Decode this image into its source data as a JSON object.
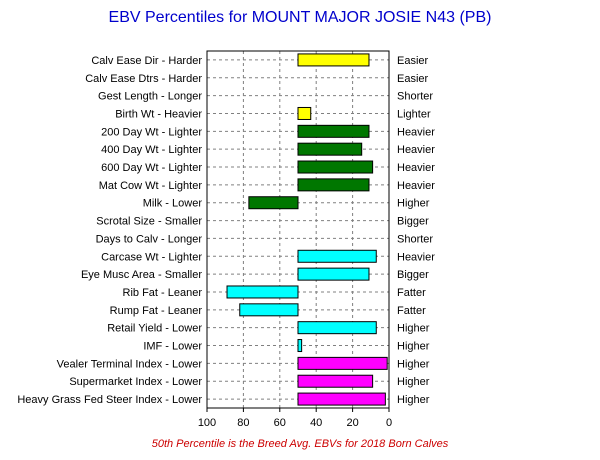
{
  "chart_data": {
    "type": "bar",
    "title": "EBV Percentiles for MOUNT MAJOR JOSIE N43 (PB)",
    "footnote": "50th Percentile is the Breed Avg. EBVs for 2018 Born Calves",
    "xlim": [
      100,
      0
    ],
    "xticks": [
      100,
      80,
      60,
      40,
      20,
      0
    ],
    "baseline": 50,
    "grid": true,
    "colors": {
      "yellow": "#ffff00",
      "green": "#007700",
      "cyan": "#00ffff",
      "magenta": "#ff00ff",
      "title": "#0000cc",
      "footnote": "#cc0000"
    },
    "rows": [
      {
        "left": "Calv Ease Dir - Harder",
        "right": "Easier",
        "value": 11,
        "color": "yellow"
      },
      {
        "left": "Calv Ease Dtrs - Harder",
        "right": "Easier",
        "value": null,
        "color": "yellow"
      },
      {
        "left": "Gest Length - Longer",
        "right": "Shorter",
        "value": null,
        "color": "yellow"
      },
      {
        "left": "Birth Wt - Heavier",
        "right": "Lighter",
        "value": 43,
        "color": "yellow"
      },
      {
        "left": "200 Day Wt - Lighter",
        "right": "Heavier",
        "value": 11,
        "color": "green"
      },
      {
        "left": "400 Day Wt - Lighter",
        "right": "Heavier",
        "value": 15,
        "color": "green"
      },
      {
        "left": "600 Day Wt - Lighter",
        "right": "Heavier",
        "value": 9,
        "color": "green"
      },
      {
        "left": "Mat Cow Wt - Lighter",
        "right": "Heavier",
        "value": 11,
        "color": "green"
      },
      {
        "left": "Milk - Lower",
        "right": "Higher",
        "value": 77,
        "color": "green"
      },
      {
        "left": "Scrotal Size - Smaller",
        "right": "Bigger",
        "value": null,
        "color": "green"
      },
      {
        "left": "Days to Calv - Longer",
        "right": "Shorter",
        "value": null,
        "color": "green"
      },
      {
        "left": "Carcase Wt - Lighter",
        "right": "Heavier",
        "value": 7,
        "color": "cyan"
      },
      {
        "left": "Eye Musc Area - Smaller",
        "right": "Bigger",
        "value": 11,
        "color": "cyan"
      },
      {
        "left": "Rib Fat - Leaner",
        "right": "Fatter",
        "value": 89,
        "color": "cyan"
      },
      {
        "left": "Rump Fat - Leaner",
        "right": "Fatter",
        "value": 82,
        "color": "cyan"
      },
      {
        "left": "Retail Yield - Lower",
        "right": "Higher",
        "value": 7,
        "color": "cyan"
      },
      {
        "left": "IMF - Lower",
        "right": "Higher",
        "value": 48,
        "color": "cyan"
      },
      {
        "left": "Vealer Terminal Index - Lower",
        "right": "Higher",
        "value": 1,
        "color": "magenta"
      },
      {
        "left": "Supermarket Index - Lower",
        "right": "Higher",
        "value": 9,
        "color": "magenta"
      },
      {
        "left": "Heavy Grass Fed Steer Index - Lower",
        "right": "Higher",
        "value": 2,
        "color": "magenta"
      }
    ]
  }
}
